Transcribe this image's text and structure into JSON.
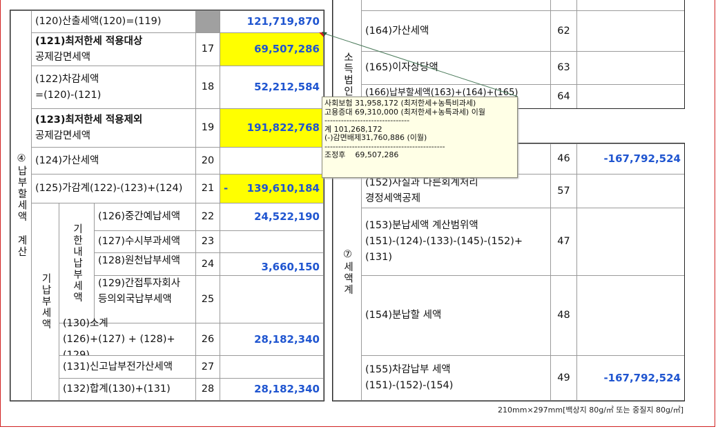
{
  "left_table": {
    "section": "④납부할세액 계산",
    "prepaid_group": "기납부세액",
    "intime_group": "기한내납부세액",
    "rows": [
      {
        "label": "(120)산출세액(120)=(119)",
        "no": "",
        "value": "121,719,870"
      },
      {
        "label_bold": "(121)최저한세 적용대상",
        "label2": "공제감면세액",
        "no": "17",
        "value": "69,507,286"
      },
      {
        "label": "(122)차감세액",
        "label2": "=(120)-(121)",
        "no": "18",
        "value": "52,212,584"
      },
      {
        "label_bold": "(123)최저한세 적용제외",
        "label2": "공제감면세액",
        "no": "19",
        "value": "191,822,768"
      },
      {
        "label": "(124)가산세액",
        "no": "20",
        "value": ""
      },
      {
        "label": "(125)가감계(122)-(123)+(124)",
        "no": "21",
        "prefix": "-",
        "value": "139,610,184"
      },
      {
        "label": "(126)중간예납세액",
        "no": "22",
        "value": "24,522,190"
      },
      {
        "label": "(127)수시부과세액",
        "no": "23",
        "value": ""
      },
      {
        "label": "(128)원천납부세액",
        "no": "24",
        "value": "3,660,150"
      },
      {
        "label": "(129)간접투자회사",
        "label2": "등의외국납부세액",
        "no": "25",
        "value": ""
      },
      {
        "label": "(130)소계",
        "label2": "(126)+(127) + (128)+(129)",
        "no": "26",
        "value": "28,182,340"
      },
      {
        "label": "(131)신고납부전가산세액",
        "no": "27",
        "value": ""
      },
      {
        "label": "(132)합계(130)+(131)",
        "no": "28",
        "value": "28,182,340"
      }
    ]
  },
  "right_table": {
    "upper_section": "소득법인세",
    "lower_section": "⑦세액계",
    "rows": [
      {
        "label": "(164)가산세액",
        "no": "62",
        "value": ""
      },
      {
        "label": "(165)이자상당액",
        "no": "63",
        "value": ""
      },
      {
        "label": "(166)납부할세액(163)+(164)+(165)",
        "no": "64",
        "value": ""
      },
      {
        "label": "",
        "no": "46",
        "value": "-167,792,524"
      },
      {
        "label": "(152)사실과 다른회계처리",
        "label2": "경정세액공제",
        "no": "57",
        "value": ""
      },
      {
        "label": "(153)분납세액 계산범위액",
        "label2": "(151)-(124)-(133)-(145)-(152)+(131)",
        "no": "47",
        "value": ""
      },
      {
        "label": "(154)분납할 세액",
        "no": "48",
        "value": ""
      },
      {
        "label": "(155)차감납부 세액",
        "label2": "(151)-(152)-(154)",
        "no": "49",
        "value": "-167,792,524"
      }
    ]
  },
  "comment": {
    "text": "사회보험 31,958,172 (최저한세+농특비과세)\n고용증대 69,310,000 (최저한세+농특과세) 이월\n-------------------------------\n계 101,268,172\n(-)감면배제31,760,886 (이월)\n--------------------------------------------\n조정후    69,507,286"
  },
  "footer": "210mm×297mm[백상지 80g/㎡ 또는 중질지 80g/㎡]",
  "colors": {
    "value_text": "#1f55d0",
    "highlight": "#ffff00",
    "comment_bg": "#ffffe6"
  }
}
